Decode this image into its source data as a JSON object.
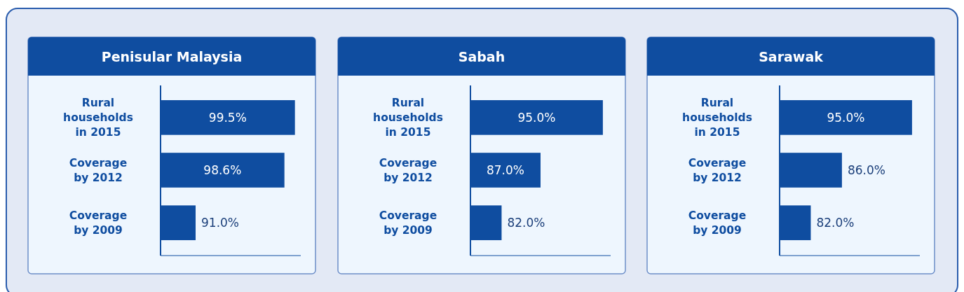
{
  "chart_data": [
    {
      "type": "bar",
      "orientation": "horizontal",
      "title": "Penisular Malaysia",
      "categories": [
        "Rural households in 2015",
        "Coverage by 2012",
        "Coverage by 2009"
      ],
      "values": [
        99.5,
        98.6,
        91.0
      ],
      "value_labels": [
        "99.5%",
        "98.6%",
        "91.0%"
      ],
      "color": "#0f4da0",
      "xlim": [
        88,
        100
      ],
      "tick_labels": "y"
    },
    {
      "type": "bar",
      "orientation": "horizontal",
      "title": "Sabah",
      "categories": [
        "Rural households in 2015",
        "Coverage by 2012",
        "Coverage by 2009"
      ],
      "values": [
        95.0,
        87.0,
        82.0
      ],
      "value_labels": [
        "95.0%",
        "87.0%",
        "82.0%"
      ],
      "color": "#0f4da0",
      "xlim": [
        78,
        96
      ],
      "tick_labels": "y"
    },
    {
      "type": "bar",
      "orientation": "horizontal",
      "title": "Sarawak",
      "categories": [
        "Rural households in 2015",
        "Coverage by 2012",
        "Coverage by 2009"
      ],
      "values": [
        95.0,
        86.0,
        82.0
      ],
      "value_labels": [
        "95.0%",
        "86.0%",
        "82.0%"
      ],
      "color": "#0f4da0",
      "xlim": [
        78,
        96
      ],
      "tick_labels": "y"
    }
  ]
}
